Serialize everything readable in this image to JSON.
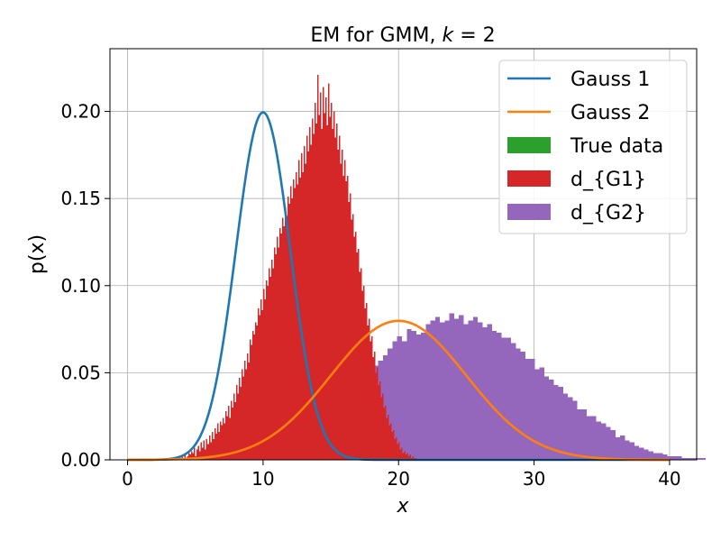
{
  "chart_data": {
    "type": "bar",
    "title": "EM for GMM, k = 2",
    "title_parts": {
      "main": "EM for GMM, ",
      "var": "k",
      "rest": " = 2"
    },
    "xlabel": "x",
    "ylabel": "p(x)",
    "xlim": [
      -1.3,
      42.0
    ],
    "ylim": [
      0.0,
      0.236
    ],
    "xticks": [
      0,
      10,
      20,
      30,
      40
    ],
    "yticks": [
      0.0,
      0.05,
      0.1,
      0.15,
      0.2
    ],
    "xtick_labels": [
      "0",
      "10",
      "20",
      "30",
      "40"
    ],
    "ytick_labels": [
      "0.00",
      "0.05",
      "0.10",
      "0.15",
      "0.20"
    ],
    "grid": true,
    "legend_position": "top-right",
    "legend": [
      {
        "name": "Gauss 1",
        "kind": "line",
        "color": "#1f77b4"
      },
      {
        "name": "Gauss 2",
        "kind": "line",
        "color": "#ff7f0e"
      },
      {
        "name": "True data",
        "kind": "patch",
        "color": "#2ca02c"
      },
      {
        "name": "d_{G1}",
        "kind": "patch",
        "color": "#d62728"
      },
      {
        "name": "d_{G2}",
        "kind": "patch",
        "color": "#9467bd"
      }
    ],
    "curves": [
      {
        "name": "Gauss 1",
        "color": "#1f77b4",
        "distribution": "normal",
        "mean": 10,
        "std": 2,
        "x_range": [
          0,
          40
        ]
      },
      {
        "name": "Gauss 2",
        "color": "#ff7f0e",
        "distribution": "normal",
        "mean": 20,
        "std": 5,
        "x_range": [
          0,
          40
        ]
      }
    ],
    "histograms": [
      {
        "name": "d_{G2}",
        "color": "#9467bd",
        "bin_start": 1.0,
        "bin_width": 0.35,
        "values": [
          0.0,
          0.0,
          0.0,
          0.0,
          0.0,
          0.0,
          0.0,
          0.0,
          0.0,
          0.0,
          0.001,
          0.001,
          0.002,
          0.002,
          0.002,
          0.003,
          0.003,
          0.004,
          0.004,
          0.005,
          0.005,
          0.006,
          0.007,
          0.008,
          0.008,
          0.009,
          0.01,
          0.011,
          0.012,
          0.013,
          0.014,
          0.016,
          0.017,
          0.018,
          0.02,
          0.022,
          0.024,
          0.026,
          0.027,
          0.029,
          0.031,
          0.034,
          0.036,
          0.039,
          0.041,
          0.043,
          0.046,
          0.05,
          0.051,
          0.054,
          0.057,
          0.06,
          0.064,
          0.068,
          0.071,
          0.068,
          0.075,
          0.074,
          0.072,
          0.073,
          0.078,
          0.08,
          0.082,
          0.079,
          0.08,
          0.084,
          0.081,
          0.083,
          0.078,
          0.08,
          0.082,
          0.079,
          0.076,
          0.078,
          0.074,
          0.073,
          0.07,
          0.07,
          0.067,
          0.064,
          0.062,
          0.058,
          0.058,
          0.052,
          0.053,
          0.048,
          0.046,
          0.043,
          0.042,
          0.038,
          0.036,
          0.034,
          0.029,
          0.029,
          0.025,
          0.025,
          0.022,
          0.021,
          0.019,
          0.017,
          0.013,
          0.014,
          0.011,
          0.01,
          0.008,
          0.007,
          0.006,
          0.005,
          0.004,
          0.004,
          0.003,
          0.002,
          0.002,
          0.002,
          0.001,
          0.001,
          0.001,
          0.001,
          0.001,
          0.0,
          0.0,
          0.0,
          0.0,
          0.0,
          0.0,
          0.0,
          0.0,
          0.0,
          0.0,
          0.0,
          0.0,
          0.0,
          0.0,
          0.0,
          0.0,
          0.0,
          0.0,
          0.0,
          0.0,
          0.0,
          0.0,
          0.0
        ]
      },
      {
        "name": "d_{G1}",
        "color": "#d62728",
        "bin_start": 4.0,
        "bin_width": 0.1,
        "values": [
          0.002,
          0.0,
          0.003,
          0.001,
          0.002,
          0.004,
          0.003,
          0.005,
          0.004,
          0.007,
          0.002,
          0.006,
          0.008,
          0.005,
          0.01,
          0.007,
          0.011,
          0.006,
          0.012,
          0.009,
          0.014,
          0.01,
          0.016,
          0.012,
          0.018,
          0.015,
          0.021,
          0.016,
          0.022,
          0.02,
          0.024,
          0.021,
          0.028,
          0.025,
          0.031,
          0.024,
          0.034,
          0.03,
          0.038,
          0.033,
          0.043,
          0.038,
          0.047,
          0.042,
          0.052,
          0.048,
          0.057,
          0.052,
          0.061,
          0.056,
          0.069,
          0.066,
          0.074,
          0.072,
          0.079,
          0.077,
          0.087,
          0.083,
          0.092,
          0.086,
          0.098,
          0.092,
          0.103,
          0.1,
          0.11,
          0.105,
          0.115,
          0.11,
          0.122,
          0.118,
          0.128,
          0.122,
          0.133,
          0.13,
          0.139,
          0.134,
          0.145,
          0.14,
          0.151,
          0.147,
          0.157,
          0.15,
          0.161,
          0.156,
          0.165,
          0.158,
          0.172,
          0.162,
          0.176,
          0.165,
          0.18,
          0.17,
          0.186,
          0.177,
          0.191,
          0.181,
          0.196,
          0.187,
          0.205,
          0.193,
          0.221,
          0.198,
          0.211,
          0.19,
          0.214,
          0.199,
          0.208,
          0.192,
          0.216,
          0.197,
          0.205,
          0.19,
          0.2,
          0.185,
          0.193,
          0.178,
          0.186,
          0.17,
          0.178,
          0.163,
          0.172,
          0.16,
          0.163,
          0.148,
          0.153,
          0.138,
          0.141,
          0.128,
          0.131,
          0.119,
          0.121,
          0.108,
          0.11,
          0.097,
          0.1,
          0.087,
          0.09,
          0.077,
          0.081,
          0.068,
          0.071,
          0.059,
          0.062,
          0.05,
          0.053,
          0.043,
          0.045,
          0.036,
          0.038,
          0.03,
          0.031,
          0.024,
          0.026,
          0.02,
          0.021,
          0.016,
          0.017,
          0.012,
          0.013,
          0.009,
          0.01,
          0.006,
          0.007,
          0.004,
          0.005,
          0.003,
          0.004,
          0.002,
          0.003,
          0.001,
          0.002,
          0.001,
          0.001,
          0.0
        ]
      }
    ]
  }
}
